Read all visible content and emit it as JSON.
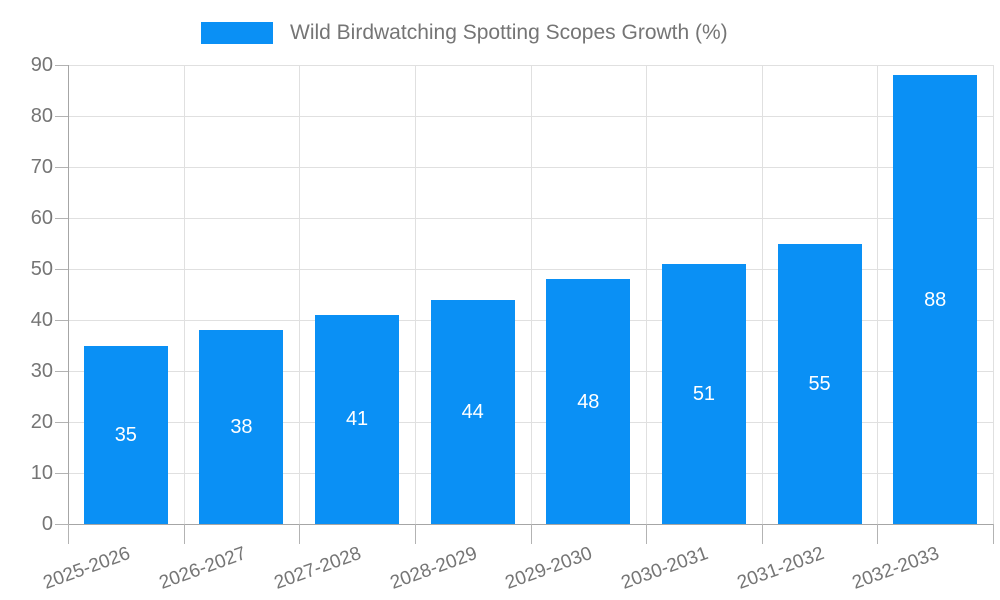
{
  "chart_data": {
    "type": "bar",
    "title": "",
    "legend": {
      "label": "Wild Birdwatching Spotting Scopes Growth (%)",
      "position": "top"
    },
    "categories": [
      "2025-2026",
      "2026-2027",
      "2027-2028",
      "2028-2029",
      "2029-2030",
      "2030-2031",
      "2031-2032",
      "2032-2033"
    ],
    "values": [
      35,
      38,
      41,
      44,
      48,
      51,
      55,
      88
    ],
    "value_labels": [
      "35",
      "38",
      "41",
      "44",
      "48",
      "51",
      "55",
      "88"
    ],
    "yticks": [
      0,
      10,
      20,
      30,
      40,
      50,
      60,
      70,
      80,
      90
    ],
    "ylim": [
      0,
      90
    ],
    "xlabel": "",
    "ylabel": "",
    "grid": true,
    "legend_position": "top",
    "colors": {
      "bar": "#0a90f5",
      "legend_text": "#757575",
      "axis_text": "#757575",
      "value_text": "#ffffff",
      "gridline": "#e0e0e0",
      "axis_line": "#a6a6a6",
      "tick": "#b3b3b3",
      "background": "#ffffff"
    }
  }
}
